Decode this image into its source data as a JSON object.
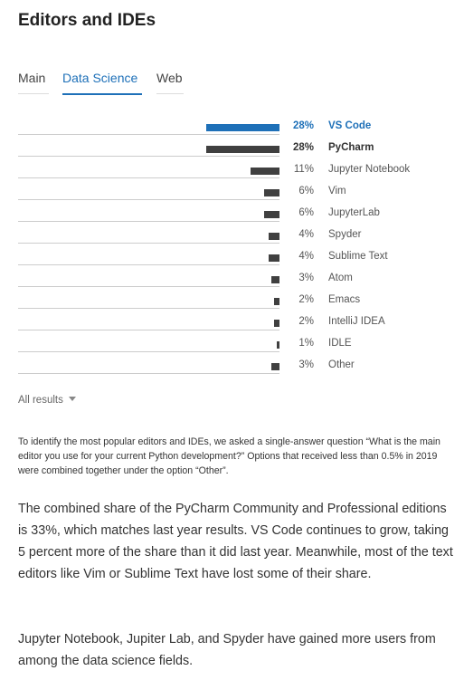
{
  "page_title": "Editors and IDEs",
  "tabs": [
    {
      "label": "Main",
      "active": false
    },
    {
      "label": "Data Science",
      "active": true
    },
    {
      "label": "Web",
      "active": false
    }
  ],
  "colors": {
    "accent": "#1e70b8",
    "bar": "#404040",
    "track": "#cccccc"
  },
  "chart_data": {
    "type": "bar",
    "orientation": "horizontal",
    "categories": [
      "VS Code",
      "PyCharm",
      "Jupyter Notebook",
      "Vim",
      "JupyterLab",
      "Spyder",
      "Sublime Text",
      "Atom",
      "Emacs",
      "IntelliJ IDEA",
      "IDLE",
      "Other"
    ],
    "values": [
      28,
      28,
      11,
      6,
      6,
      4,
      4,
      3,
      2,
      2,
      1,
      3
    ],
    "value_labels": [
      "28%",
      "28%",
      "11%",
      "6%",
      "6%",
      "4%",
      "4%",
      "3%",
      "2%",
      "2%",
      "1%",
      "3%"
    ],
    "unit": "%",
    "xlim": [
      0,
      28
    ],
    "grid": false,
    "highlight": {
      "VS Code": "accent",
      "PyCharm": "dark"
    }
  },
  "all_results_label": "All results",
  "note": "To identify the most popular editors and IDEs, we asked a single-answer question “What is the main editor you use for your current Python development?” Options that received less than 0.5% in 2019 were combined together under the option “Other”.",
  "paragraphs": [
    "The combined share of the PyCharm Community and Professional editions is 33%, which matches last year results. VS Code continues to grow, taking 5 percent more of the share than it did last year. Meanwhile, most of the text editors like Vim or Sublime Text have lost some of their share.",
    "Jupyter Notebook, Jupiter Lab, and Spyder have gained more users from among the data science fields."
  ]
}
